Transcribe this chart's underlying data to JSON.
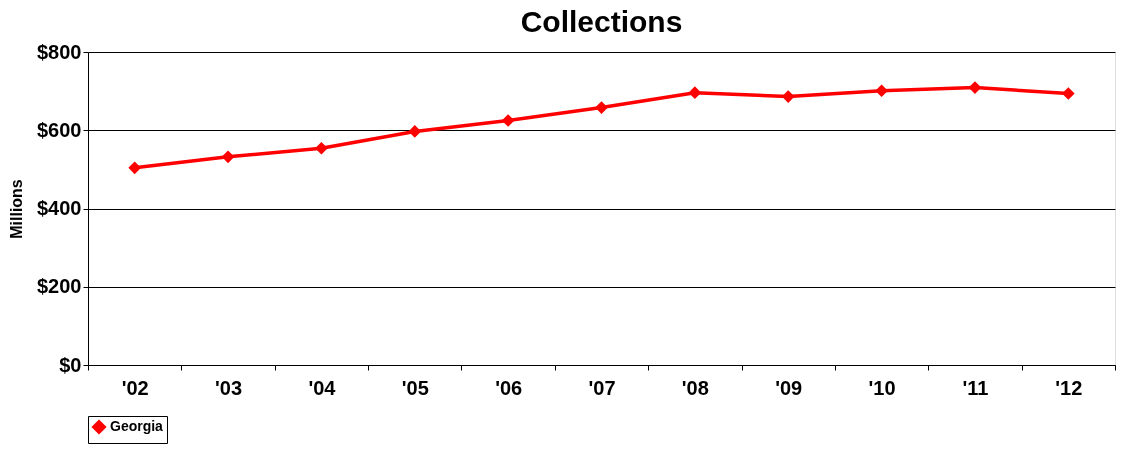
{
  "chart_data": {
    "type": "line",
    "title": "Collections",
    "ylabel": "Millions",
    "categories": [
      "'02",
      "'03",
      "'04",
      "'05",
      "'06",
      "'07",
      "'08",
      "'09",
      "'10",
      "'11",
      "'12"
    ],
    "series": [
      {
        "name": "Georgia",
        "color": "#ff0000",
        "values": [
          504,
          532,
          554,
          597,
          625,
          658,
          696,
          686,
          701,
          709,
          694
        ]
      }
    ],
    "ylim": [
      0,
      800
    ],
    "yticks": [
      {
        "value": 0,
        "label": "$0"
      },
      {
        "value": 200,
        "label": "$200"
      },
      {
        "value": 400,
        "label": "$400"
      },
      {
        "value": 600,
        "label": "$600"
      },
      {
        "value": 800,
        "label": "$800"
      }
    ],
    "grid": "y",
    "legend": "bottom",
    "marker": "diamond",
    "line_style": "solid"
  }
}
